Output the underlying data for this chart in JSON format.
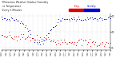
{
  "title_line1": "Milwaukee Weather Outdoor Humidity",
  "title_line2": "vs Temperature",
  "title_line3": "Every 5 Minutes",
  "title_fontsize": 2.2,
  "background_color": "#ffffff",
  "grid_color": "#bbbbbb",
  "humidity_color": "#0000cc",
  "temp_color": "#dd0000",
  "legend_red_label": "Temp",
  "legend_blue_label": "Humidity",
  "yticks": [
    5,
    51,
    97
  ],
  "ylim": [
    0,
    104
  ],
  "xlim": [
    0,
    1
  ],
  "np_seed": 7,
  "n_humidity": 90,
  "n_temp": 90,
  "marker_size": 0.4
}
